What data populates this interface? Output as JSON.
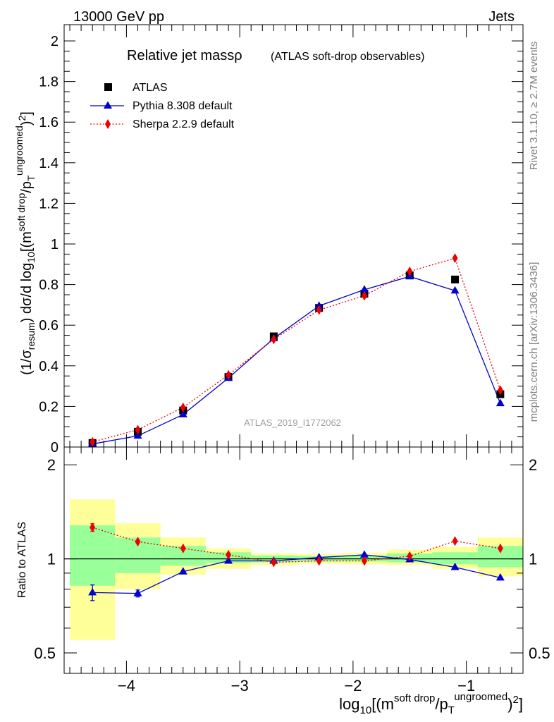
{
  "header": {
    "left": "13000 GeV pp",
    "right": "Jets"
  },
  "side": {
    "rivet": "Rivet 3.1.10, ≥ 2.7M events",
    "mcplots": "mcplots.cern.ch [arXiv:1306.3436]"
  },
  "chart_data": [
    {
      "type": "scatter",
      "title_main": "Relative jet massρ",
      "title_sub": "(ATLAS soft-drop observables)",
      "watermark": "ATLAS_2019_I1772062",
      "ylabel": "(1/σresum) dσ/d log10[(m^soft drop/pT^ungroomed)^2]",
      "xlabel": "log10[(m^soft drop/pT^ungroomed)^2]",
      "xlim": [
        -4.55,
        -0.5
      ],
      "ylim": [
        0,
        2.08
      ],
      "yticks": [
        "0",
        "0.2",
        "0.4",
        "0.6",
        "0.8",
        "1",
        "1.2",
        "1.4",
        "1.6",
        "1.8",
        "2"
      ],
      "legend_position": "top-left",
      "x": [
        -4.3,
        -3.9,
        -3.5,
        -3.1,
        -2.7,
        -2.3,
        -1.9,
        -1.5,
        -1.1,
        -0.7
      ],
      "series": [
        {
          "name": "ATLAS",
          "color": "#000000",
          "marker": "square",
          "values": [
            0.02,
            0.075,
            0.18,
            0.345,
            0.545,
            0.685,
            0.755,
            0.845,
            0.825,
            0.26
          ]
        },
        {
          "name": "Pythia 8.308 default",
          "color": "#0000cc",
          "marker": "triangle",
          "values": [
            0.015,
            0.055,
            0.16,
            0.34,
            0.535,
            0.695,
            0.775,
            0.84,
            0.77,
            0.215
          ]
        },
        {
          "name": "Sherpa 2.2.9 default",
          "color": "#ee0000",
          "marker": "diamond",
          "values": [
            0.025,
            0.085,
            0.195,
            0.355,
            0.53,
            0.675,
            0.745,
            0.865,
            0.93,
            0.28
          ]
        }
      ]
    },
    {
      "type": "line",
      "ylabel": "Ratio to ATLAS",
      "xlabel": "log10[(m^soft drop/pT^ungroomed)^2]",
      "xlim": [
        -4.55,
        -0.5
      ],
      "ylim": [
        0.43,
        2.28
      ],
      "log_y": true,
      "xticks": [
        "−4",
        "−3",
        "−2",
        "−1"
      ],
      "yticks": [
        "0.5",
        "1",
        "2"
      ],
      "bins": [
        [
          -4.5,
          -4.1
        ],
        [
          -4.1,
          -3.7
        ],
        [
          -3.7,
          -3.3
        ],
        [
          -3.3,
          -2.9
        ],
        [
          -2.9,
          -2.5
        ],
        [
          -2.5,
          -2.1
        ],
        [
          -2.1,
          -1.7
        ],
        [
          -1.7,
          -1.3
        ],
        [
          -1.3,
          -0.9
        ],
        [
          -0.9,
          -0.5
        ]
      ],
      "band_inner": [
        [
          0.82,
          1.28
        ],
        [
          0.9,
          1.17
        ],
        [
          0.95,
          1.1
        ],
        [
          0.97,
          1.05
        ],
        [
          0.975,
          1.025
        ],
        [
          0.98,
          1.02
        ],
        [
          0.98,
          1.025
        ],
        [
          0.975,
          1.04
        ],
        [
          0.96,
          1.05
        ],
        [
          0.94,
          1.1
        ]
      ],
      "band_outer": [
        [
          0.55,
          1.55
        ],
        [
          0.8,
          1.3
        ],
        [
          0.89,
          1.17
        ],
        [
          0.93,
          1.08
        ],
        [
          0.955,
          1.04
        ],
        [
          0.965,
          1.035
        ],
        [
          0.96,
          1.045
        ],
        [
          0.955,
          1.07
        ],
        [
          0.93,
          1.09
        ],
        [
          0.88,
          1.17
        ]
      ],
      "x": [
        -4.3,
        -3.9,
        -3.5,
        -3.1,
        -2.7,
        -2.3,
        -1.9,
        -1.5,
        -1.1,
        -0.7
      ],
      "series": [
        {
          "name": "Pythia 8.308 default",
          "color": "#0000cc",
          "marker": "triangle",
          "values": [
            0.78,
            0.775,
            0.91,
            0.985,
            0.985,
            1.01,
            1.03,
            0.995,
            0.94,
            0.87
          ],
          "errors": [
            0.045,
            0.02,
            0,
            0,
            0,
            0,
            0,
            0,
            0,
            0
          ]
        },
        {
          "name": "Sherpa 2.2.9 default",
          "color": "#ee0000",
          "marker": "diamond",
          "values": [
            1.26,
            1.135,
            1.08,
            1.03,
            0.975,
            0.985,
            0.985,
            1.02,
            1.14,
            1.08
          ],
          "errors": [
            0.035,
            0,
            0,
            0,
            0,
            0,
            0,
            0,
            0,
            0
          ]
        }
      ]
    }
  ]
}
